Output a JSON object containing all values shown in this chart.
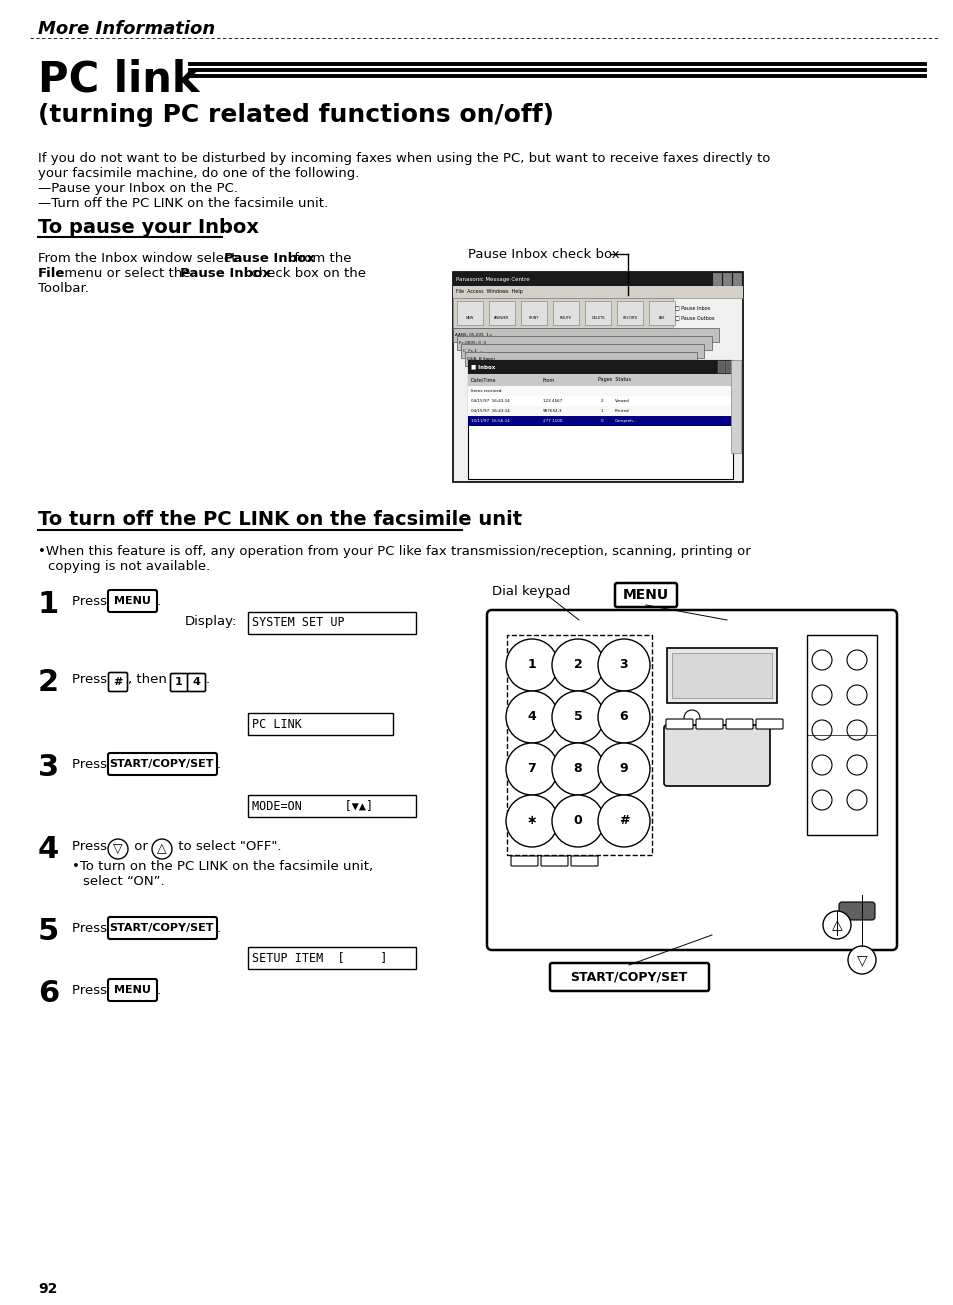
{
  "bg_color": "#ffffff",
  "header_italic_bold": "More Information",
  "title_main": "PC link",
  "title_sub": "(turning PC related functions on/off)",
  "intro_text": "If you do not want to be disturbed by incoming faxes when using the PC, but want to receive faxes directly to\nyour facsimile machine, do one of the following.\n—Pause your Inbox on the PC.\n—Turn off the PC LINK on the facsimile unit.",
  "section1_title": "To pause your Inbox",
  "pause_inbox_label": "Pause Inbox check box",
  "section2_title": "To turn off the PC LINK on the facsimile unit",
  "section2_bullet": "•When this feature is off, any operation from your PC like fax transmission/reception, scanning, printing or\n  copying is not available.",
  "dial_keypad_label": "Dial keypad",
  "page_number": "92"
}
